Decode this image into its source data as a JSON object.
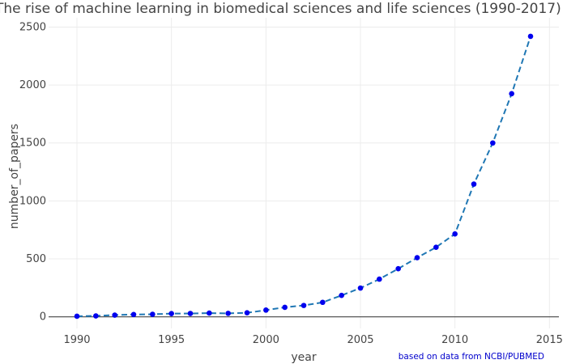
{
  "chart_data": {
    "type": "line",
    "title": "The rise of machine learning in biomedical sciences and life sciences (1990-2017)",
    "xlabel": "year",
    "ylabel": "number_of_papers",
    "annotation": "based on data from NCBI/PUBMED",
    "xlim": [
      1988.5,
      2015.5
    ],
    "ylim": [
      -100,
      2580
    ],
    "x_ticks": [
      1990,
      1995,
      2000,
      2005,
      2010,
      2015
    ],
    "y_ticks": [
      0,
      500,
      1000,
      1500,
      2000,
      2500
    ],
    "grid": true,
    "legend": "none",
    "line_color": "#1f77b4",
    "line_style": "dashed",
    "marker_color": "#0000ee",
    "series": [
      {
        "x": [
          1990,
          1991,
          1992,
          1993,
          1994,
          1995,
          1996,
          1997,
          1998,
          1999,
          2000,
          2001,
          2002,
          2003,
          2004,
          2005,
          2006,
          2007,
          2008,
          2009,
          2010,
          2011,
          2012,
          2013,
          2014
        ],
        "y": [
          5,
          8,
          15,
          20,
          22,
          28,
          29,
          32,
          30,
          35,
          58,
          82,
          98,
          125,
          185,
          248,
          325,
          415,
          510,
          600,
          715,
          1145,
          1500,
          1925,
          2420
        ]
      }
    ]
  }
}
